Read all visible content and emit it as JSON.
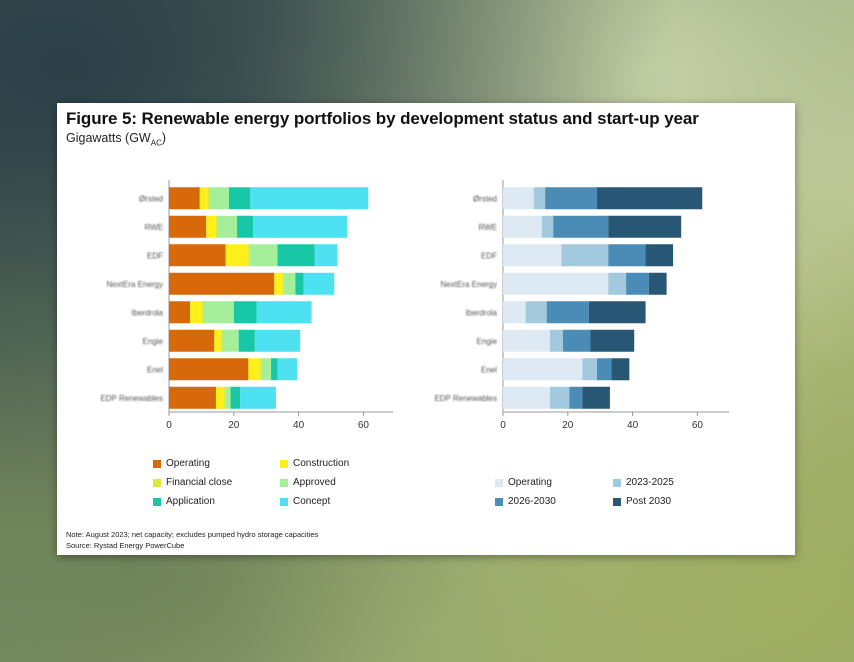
{
  "figure": {
    "title": "Figure 5: Renewable energy portfolios by development status and start-up year",
    "subtitle_main": "Gigawatts (GW",
    "subtitle_sub": "AC",
    "subtitle_end": ")",
    "note": "Note: August 2023; net capacity; excludes pumped hydro storage capacities",
    "source": "Source: Rystad Energy PowerCube"
  },
  "chart_data": [
    {
      "type": "bar",
      "orientation": "horizontal",
      "stacked": true,
      "categories": [
        "Ørsted",
        "RWE",
        "EDF",
        "NextEra Energy",
        "Iberdrola",
        "Engie",
        "Enel",
        "EDP Renewables"
      ],
      "xlim": [
        0,
        70
      ],
      "xticks": [
        0,
        20,
        40,
        60
      ],
      "legend_position": "bottom",
      "series": [
        {
          "name": "Operating",
          "color": "#d8690a",
          "values": [
            9.5,
            11.5,
            17.5,
            32.5,
            6.5,
            14,
            24.5,
            14.5
          ]
        },
        {
          "name": "Construction",
          "color": "#ffef1a",
          "values": [
            2.5,
            3,
            7,
            2.5,
            3.5,
            2,
            3.5,
            2.5
          ]
        },
        {
          "name": "Financial close",
          "color": "#d8ea3a",
          "values": [
            0.5,
            0.5,
            0.5,
            0.5,
            0.5,
            0.5,
            0.5,
            0.5
          ]
        },
        {
          "name": "Approved",
          "color": "#a6ef9a",
          "values": [
            6,
            6,
            8.5,
            3.5,
            9.5,
            5,
            3,
            1.5
          ]
        },
        {
          "name": "Application",
          "color": "#18c7a6",
          "values": [
            6.5,
            5,
            11.5,
            2.5,
            7,
            5,
            2,
            3
          ]
        },
        {
          "name": "Concept",
          "color": "#4de1f2",
          "values": [
            36.5,
            29,
            7,
            9.5,
            17,
            14,
            6,
            11
          ]
        }
      ]
    },
    {
      "type": "bar",
      "orientation": "horizontal",
      "stacked": true,
      "categories": [
        "Ørsted",
        "RWE",
        "EDF",
        "NextEra Energy",
        "Iberdrola",
        "Engie",
        "Enel",
        "EDP Renewables"
      ],
      "xlim": [
        0,
        70
      ],
      "xticks": [
        0,
        20,
        40,
        60
      ],
      "legend_position": "bottom",
      "series": [
        {
          "name": "Operating",
          "color": "#dde9f3",
          "values": [
            9.5,
            12,
            18,
            32.5,
            7,
            14.5,
            24.5,
            14.5
          ]
        },
        {
          "name": "2023-2025",
          "color": "#a3c9df",
          "values": [
            3.5,
            3.5,
            14.5,
            5.5,
            6.5,
            4,
            4.5,
            6
          ]
        },
        {
          "name": "2026-2030",
          "color": "#4a8cb5",
          "values": [
            16,
            17,
            11.5,
            7,
            13,
            8.5,
            4.5,
            4
          ]
        },
        {
          "name": "Post 2030",
          "color": "#275775",
          "values": [
            32.5,
            22.5,
            8.5,
            5.5,
            17.5,
            13.5,
            5.5,
            8.5
          ]
        }
      ]
    }
  ]
}
